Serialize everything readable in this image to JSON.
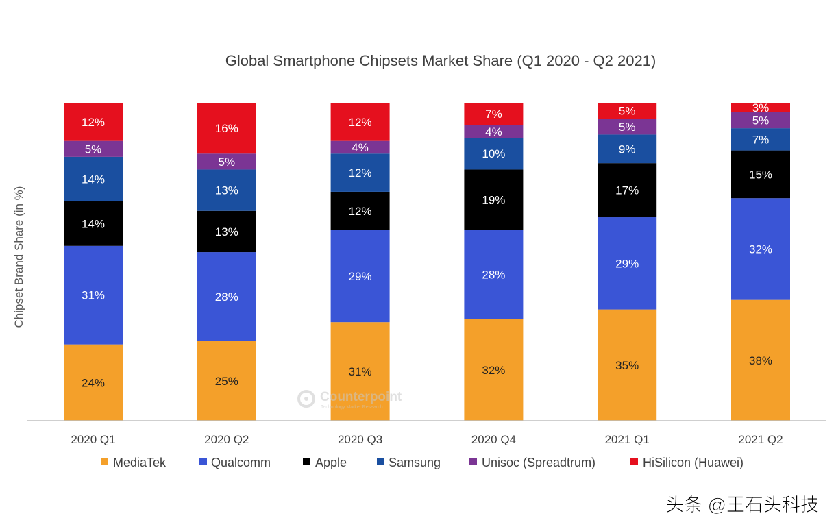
{
  "chart_data": {
    "type": "bar",
    "stacked": true,
    "title": "Global Smartphone Chipsets Market Share (Q1 2020 - Q2 2021)",
    "ylabel": "Chipset Brand Share (in %)",
    "xlabel": "",
    "ylim": [
      0,
      100
    ],
    "grid": false,
    "legend_position": "bottom",
    "categories": [
      "2020 Q1",
      "2020 Q2",
      "2020 Q3",
      "2020 Q4",
      "2021 Q1",
      "2021 Q2"
    ],
    "series": [
      {
        "name": "MediaTek",
        "color": "#f4a02a",
        "label_color": "#222222",
        "values": [
          24,
          25,
          31,
          32,
          35,
          38
        ],
        "labels": [
          "24%",
          "25%",
          "31%",
          "32%",
          "35%",
          "38%"
        ]
      },
      {
        "name": "Qualcomm",
        "color": "#3a55d6",
        "label_color": "#ffffff",
        "values": [
          31,
          28,
          29,
          28,
          29,
          32
        ],
        "labels": [
          "31%",
          "28%",
          "29%",
          "28%",
          "29%",
          "32%"
        ]
      },
      {
        "name": "Apple",
        "color": "#000000",
        "label_color": "#ffffff",
        "values": [
          14,
          13,
          12,
          19,
          17,
          15
        ],
        "labels": [
          "14%",
          "13%",
          "12%",
          "19%",
          "17%",
          "15%"
        ]
      },
      {
        "name": "Samsung",
        "color": "#1a4fa0",
        "label_color": "#ffffff",
        "values": [
          14,
          13,
          12,
          10,
          9,
          7
        ],
        "labels": [
          "14%",
          "13%",
          "12%",
          "10%",
          "9%",
          "7%"
        ]
      },
      {
        "name": "Unisoc (Spreadtrum)",
        "color": "#7b3594",
        "label_color": "#ffffff",
        "values": [
          5,
          5,
          4,
          4,
          5,
          5
        ],
        "labels": [
          "5%",
          "5%",
          "4%",
          "4%",
          "5%",
          "5%"
        ]
      },
      {
        "name": "HiSilicon (Huawei)",
        "color": "#e5101e",
        "label_color": "#ffffff",
        "values": [
          12,
          16,
          12,
          7,
          5,
          3
        ],
        "labels": [
          "12%",
          "16%",
          "12%",
          "7%",
          "5%",
          "3%"
        ]
      }
    ]
  },
  "watermark": {
    "brand": "Counterpoint",
    "tagline": "Technology Market Research",
    "source_mark": "头条 @王石头科技"
  },
  "colors": {
    "axis": "#bfbfbf",
    "text": "#404040",
    "watermark": "#c8c8c8"
  }
}
